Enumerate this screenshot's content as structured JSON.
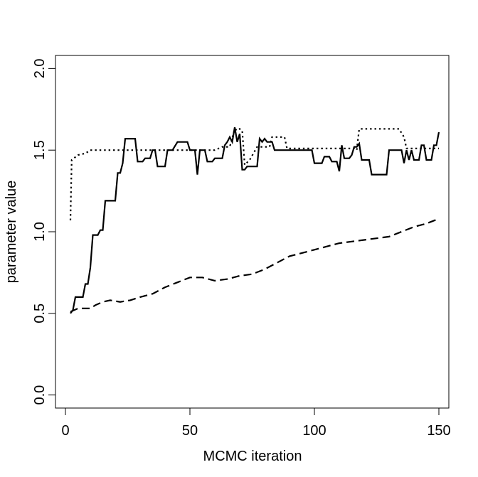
{
  "chart_data": {
    "type": "line",
    "xlabel": "MCMC iteration",
    "ylabel": "parameter value",
    "xlim": [
      -4,
      154
    ],
    "ylim": [
      -0.08,
      2.08
    ],
    "x_ticks": [
      0,
      50,
      100,
      150
    ],
    "y_ticks": [
      0.0,
      0.5,
      1.0,
      1.5,
      2.0
    ],
    "x_tick_labels": [
      "0",
      "50",
      "100",
      "150"
    ],
    "y_tick_labels": [
      "0.0",
      "0.5",
      "1.0",
      "1.5",
      "2.0"
    ],
    "grid": false,
    "legend": "none",
    "series": [
      {
        "style": "solid",
        "points": [
          [
            2,
            0.5
          ],
          [
            3,
            0.52
          ],
          [
            4,
            0.6
          ],
          [
            7,
            0.6
          ],
          [
            8,
            0.68
          ],
          [
            9,
            0.68
          ],
          [
            10,
            0.78
          ],
          [
            11,
            0.98
          ],
          [
            13,
            0.98
          ],
          [
            14,
            1.01
          ],
          [
            15,
            1.01
          ],
          [
            16,
            1.19
          ],
          [
            20,
            1.19
          ],
          [
            21,
            1.36
          ],
          [
            22,
            1.36
          ],
          [
            23,
            1.42
          ],
          [
            24,
            1.57
          ],
          [
            28,
            1.57
          ],
          [
            29,
            1.43
          ],
          [
            31,
            1.43
          ],
          [
            32,
            1.45
          ],
          [
            34,
            1.45
          ],
          [
            35,
            1.5
          ],
          [
            36,
            1.5
          ],
          [
            37,
            1.4
          ],
          [
            40,
            1.4
          ],
          [
            41,
            1.5
          ],
          [
            43,
            1.5
          ],
          [
            45,
            1.55
          ],
          [
            49,
            1.55
          ],
          [
            50,
            1.5
          ],
          [
            52,
            1.5
          ],
          [
            53,
            1.35
          ],
          [
            54,
            1.5
          ],
          [
            56,
            1.5
          ],
          [
            57,
            1.43
          ],
          [
            59,
            1.43
          ],
          [
            60,
            1.45
          ],
          [
            63,
            1.45
          ],
          [
            64,
            1.53
          ],
          [
            65,
            1.55
          ],
          [
            66,
            1.58
          ],
          [
            67,
            1.55
          ],
          [
            68,
            1.64
          ],
          [
            69,
            1.55
          ],
          [
            70,
            1.6
          ],
          [
            71,
            1.38
          ],
          [
            72,
            1.38
          ],
          [
            73,
            1.4
          ],
          [
            77,
            1.4
          ],
          [
            78,
            1.57
          ],
          [
            79,
            1.55
          ],
          [
            80,
            1.57
          ],
          [
            81,
            1.55
          ],
          [
            83,
            1.55
          ],
          [
            84,
            1.5
          ],
          [
            99,
            1.5
          ],
          [
            100,
            1.42
          ],
          [
            103,
            1.42
          ],
          [
            104,
            1.46
          ],
          [
            106,
            1.46
          ],
          [
            107,
            1.43
          ],
          [
            109,
            1.43
          ],
          [
            110,
            1.37
          ],
          [
            111,
            1.53
          ],
          [
            112,
            1.45
          ],
          [
            114,
            1.45
          ],
          [
            115,
            1.47
          ],
          [
            116,
            1.52
          ],
          [
            117,
            1.52
          ],
          [
            118,
            1.54
          ],
          [
            119,
            1.44
          ],
          [
            122,
            1.44
          ],
          [
            123,
            1.35
          ],
          [
            129,
            1.35
          ],
          [
            130,
            1.5
          ],
          [
            135,
            1.5
          ],
          [
            136,
            1.42
          ],
          [
            137,
            1.5
          ],
          [
            138,
            1.44
          ],
          [
            139,
            1.5
          ],
          [
            140,
            1.44
          ],
          [
            142,
            1.44
          ],
          [
            143,
            1.53
          ],
          [
            144,
            1.53
          ],
          [
            145,
            1.44
          ],
          [
            147,
            1.44
          ],
          [
            148,
            1.53
          ],
          [
            149,
            1.53
          ],
          [
            150,
            1.61
          ]
        ]
      },
      {
        "style": "dotted",
        "points": [
          [
            2,
            1.07
          ],
          [
            2.5,
            1.44
          ],
          [
            5,
            1.47
          ],
          [
            8,
            1.48
          ],
          [
            10,
            1.5
          ],
          [
            60,
            1.5
          ],
          [
            63,
            1.52
          ],
          [
            66,
            1.52
          ],
          [
            68,
            1.63
          ],
          [
            69,
            1.62
          ],
          [
            70,
            1.63
          ],
          [
            71,
            1.62
          ],
          [
            72,
            1.41
          ],
          [
            74,
            1.44
          ],
          [
            77,
            1.52
          ],
          [
            82,
            1.52
          ],
          [
            83,
            1.58
          ],
          [
            88,
            1.58
          ],
          [
            89,
            1.51
          ],
          [
            116,
            1.51
          ],
          [
            117,
            1.5
          ],
          [
            118,
            1.63
          ],
          [
            134,
            1.63
          ],
          [
            136,
            1.58
          ],
          [
            137,
            1.51
          ],
          [
            150,
            1.51
          ]
        ]
      },
      {
        "style": "dashed",
        "points": [
          [
            2,
            0.51
          ],
          [
            5,
            0.53
          ],
          [
            10,
            0.53
          ],
          [
            12,
            0.55
          ],
          [
            15,
            0.57
          ],
          [
            18,
            0.58
          ],
          [
            22,
            0.57
          ],
          [
            26,
            0.58
          ],
          [
            30,
            0.6
          ],
          [
            35,
            0.62
          ],
          [
            40,
            0.66
          ],
          [
            45,
            0.69
          ],
          [
            50,
            0.72
          ],
          [
            55,
            0.72
          ],
          [
            60,
            0.7
          ],
          [
            65,
            0.71
          ],
          [
            70,
            0.73
          ],
          [
            75,
            0.74
          ],
          [
            80,
            0.77
          ],
          [
            85,
            0.81
          ],
          [
            90,
            0.85
          ],
          [
            95,
            0.87
          ],
          [
            100,
            0.89
          ],
          [
            105,
            0.91
          ],
          [
            110,
            0.93
          ],
          [
            115,
            0.94
          ],
          [
            120,
            0.95
          ],
          [
            125,
            0.96
          ],
          [
            130,
            0.97
          ],
          [
            135,
            1.0
          ],
          [
            140,
            1.03
          ],
          [
            145,
            1.05
          ],
          [
            150,
            1.08
          ]
        ]
      }
    ]
  }
}
